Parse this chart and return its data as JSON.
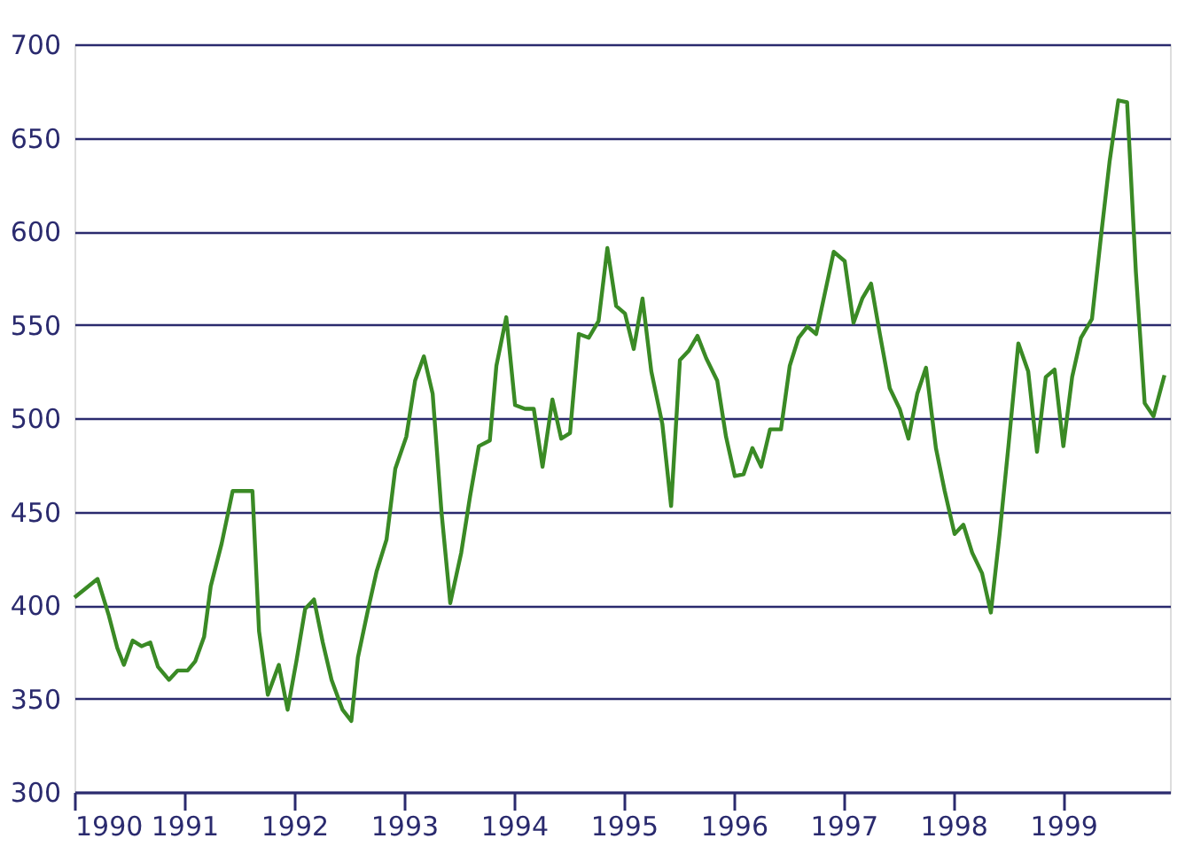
{
  "chart_data": {
    "type": "line",
    "xlim": [
      1990,
      1999.97
    ],
    "xticks": [
      1990,
      1991,
      1992,
      1993,
      1994,
      1995,
      1996,
      1997,
      1998,
      1999
    ],
    "ylim": [
      300,
      700
    ],
    "yticks": [
      300,
      350,
      400,
      450,
      500,
      550,
      600,
      650,
      700
    ],
    "grid": "y",
    "marker": "none",
    "line_style": "solid",
    "series": [
      {
        "color": "#3a8a25",
        "x": [
          1990.0,
          1990.21,
          1990.31,
          1990.39,
          1990.45,
          1990.53,
          1990.61,
          1990.69,
          1990.76,
          1990.86,
          1990.94,
          1991.03,
          1991.1,
          1991.18,
          1991.24,
          1991.34,
          1991.44,
          1991.62,
          1991.68,
          1991.76,
          1991.86,
          1991.94,
          1992.02,
          1992.1,
          1992.18,
          1992.26,
          1992.34,
          1992.44,
          1992.52,
          1992.58,
          1992.67,
          1992.75,
          1992.84,
          1992.92,
          1993.02,
          1993.1,
          1993.18,
          1993.26,
          1993.34,
          1993.42,
          1993.52,
          1993.6,
          1993.68,
          1993.78,
          1993.84,
          1993.93,
          1994.01,
          1994.1,
          1994.18,
          1994.26,
          1994.35,
          1994.43,
          1994.51,
          1994.59,
          1994.68,
          1994.77,
          1994.85,
          1994.93,
          1995.01,
          1995.09,
          1995.17,
          1995.25,
          1995.35,
          1995.43,
          1995.51,
          1995.59,
          1995.67,
          1995.75,
          1995.85,
          1995.93,
          1996.01,
          1996.09,
          1996.17,
          1996.25,
          1996.33,
          1996.43,
          1996.51,
          1996.59,
          1996.67,
          1996.75,
          1996.83,
          1996.91,
          1997.01,
          1997.09,
          1997.17,
          1997.25,
          1997.33,
          1997.42,
          1997.51,
          1997.59,
          1997.67,
          1997.75,
          1997.84,
          1997.92,
          1998.01,
          1998.09,
          1998.17,
          1998.26,
          1998.34,
          1998.42,
          1998.5,
          1998.59,
          1998.68,
          1998.76,
          1998.84,
          1998.92,
          1999.0,
          1999.08,
          1999.16,
          1999.26,
          1999.34,
          1999.42,
          1999.5,
          1999.58,
          1999.66,
          1999.74,
          1999.82,
          1999.92
        ],
        "values": [
          404,
          414,
          395,
          377,
          368,
          381,
          378,
          380,
          367,
          360,
          365,
          365,
          370,
          383,
          410,
          433,
          461,
          461,
          386,
          352,
          368,
          344,
          370,
          398,
          403,
          380,
          360,
          344,
          338,
          372,
          397,
          418,
          435,
          473,
          490,
          520,
          533,
          513,
          450,
          401,
          428,
          458,
          485,
          488,
          528,
          554,
          507,
          505,
          505,
          474,
          510,
          489,
          492,
          545,
          543,
          552,
          591,
          560,
          556,
          537,
          564,
          525,
          497,
          453,
          531,
          536,
          544,
          532,
          520,
          490,
          469,
          470,
          484,
          474,
          494,
          494,
          528,
          543,
          549,
          545,
          567,
          589,
          584,
          551,
          564,
          572,
          545,
          516,
          505,
          489,
          513,
          527,
          484,
          461,
          438,
          443,
          428,
          417,
          396,
          438,
          485,
          540,
          525,
          482,
          522,
          526,
          485,
          522,
          543,
          553,
          596,
          637,
          670,
          669,
          578,
          508,
          501,
          523
        ]
      }
    ]
  }
}
